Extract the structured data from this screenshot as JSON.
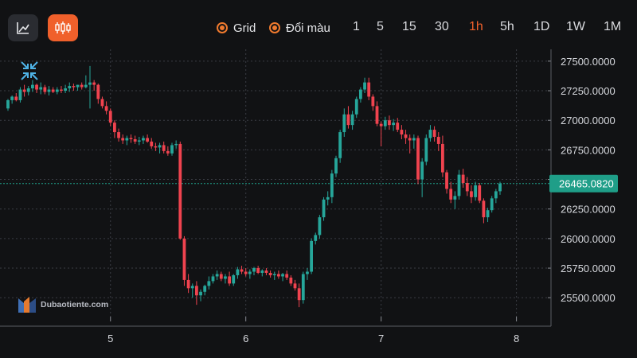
{
  "toolbar": {
    "line_chart_button": "line-chart-icon",
    "candle_chart_button": "candlestick-icon",
    "grid_label": "Grid",
    "color_label": "Đổi màu",
    "timeframes": [
      "1",
      "5",
      "15",
      "30",
      "1h",
      "5h",
      "1D",
      "1W",
      "1M"
    ],
    "active_timeframe": "1h",
    "accent_color": "#f0602b"
  },
  "watermark": {
    "text": "Dubaotiente.com"
  },
  "colors": {
    "up": "#26a69a",
    "down": "#f0434f",
    "price_tag": "#1f9e88"
  },
  "chart_data": {
    "type": "candlestick",
    "y_ticks": [
      "27500.0000",
      "27250.0000",
      "27000.0000",
      "26750.0000",
      "26500.0000",
      "26250.0000",
      "26000.0000",
      "25750.0000",
      "25500.0000"
    ],
    "y_tick_values": [
      27500,
      27250,
      27000,
      26750,
      26500,
      26250,
      26000,
      25750,
      25500
    ],
    "ylim": [
      25340,
      27600
    ],
    "x_ticks": [
      "5",
      "6",
      "7",
      "8"
    ],
    "x_tick_index": [
      25,
      58,
      91,
      124
    ],
    "current_price": 26465.082,
    "current_price_label": "26465.0820",
    "grid": true,
    "candles": [
      [
        27100,
        27180,
        27080,
        27170
      ],
      [
        27170,
        27210,
        27140,
        27200
      ],
      [
        27200,
        27230,
        27160,
        27170
      ],
      [
        27170,
        27280,
        27150,
        27260
      ],
      [
        27260,
        27300,
        27200,
        27240
      ],
      [
        27240,
        27290,
        27210,
        27270
      ],
      [
        27270,
        27340,
        27240,
        27300
      ],
      [
        27300,
        27310,
        27230,
        27260
      ],
      [
        27260,
        27320,
        27220,
        27280
      ],
      [
        27280,
        27300,
        27220,
        27240
      ],
      [
        27240,
        27290,
        27210,
        27260
      ],
      [
        27260,
        27280,
        27230,
        27240
      ],
      [
        27240,
        27280,
        27220,
        27260
      ],
      [
        27260,
        27290,
        27230,
        27250
      ],
      [
        27250,
        27300,
        27230,
        27270
      ],
      [
        27270,
        27320,
        27240,
        27290
      ],
      [
        27290,
        27310,
        27250,
        27280
      ],
      [
        27280,
        27300,
        27250,
        27300
      ],
      [
        27300,
        27320,
        27260,
        27280
      ],
      [
        27280,
        27380,
        27270,
        27300
      ],
      [
        27300,
        27460,
        27100,
        27320
      ],
      [
        27320,
        27340,
        27250,
        27300
      ],
      [
        27300,
        27310,
        27140,
        27180
      ],
      [
        27180,
        27200,
        27100,
        27120
      ],
      [
        27120,
        27160,
        27050,
        27080
      ],
      [
        27080,
        27100,
        26950,
        26980
      ],
      [
        26980,
        27000,
        26850,
        26900
      ],
      [
        26900,
        26930,
        26820,
        26850
      ],
      [
        26850,
        26880,
        26800,
        26830
      ],
      [
        26830,
        26870,
        26790,
        26850
      ],
      [
        26850,
        26880,
        26810,
        26840
      ],
      [
        26840,
        26870,
        26800,
        26820
      ],
      [
        26820,
        26860,
        26790,
        26830
      ],
      [
        26830,
        26870,
        26800,
        26850
      ],
      [
        26850,
        26880,
        26810,
        26820
      ],
      [
        26820,
        26850,
        26760,
        26780
      ],
      [
        26780,
        26810,
        26740,
        26770
      ],
      [
        26770,
        26810,
        26720,
        26790
      ],
      [
        26790,
        26820,
        26720,
        26740
      ],
      [
        26740,
        26780,
        26700,
        26720
      ],
      [
        26720,
        26810,
        26700,
        26790
      ],
      [
        26790,
        26830,
        26760,
        26800
      ],
      [
        26800,
        26820,
        25990,
        26000
      ],
      [
        26000,
        26020,
        25600,
        25650
      ],
      [
        25650,
        25700,
        25540,
        25580
      ],
      [
        25580,
        25620,
        25500,
        25600
      ],
      [
        25600,
        25640,
        25440,
        25520
      ],
      [
        25520,
        25570,
        25470,
        25550
      ],
      [
        25550,
        25610,
        25520,
        25600
      ],
      [
        25600,
        25680,
        25570,
        25640
      ],
      [
        25640,
        25700,
        25620,
        25680
      ],
      [
        25680,
        25730,
        25650,
        25700
      ],
      [
        25700,
        25720,
        25640,
        25660
      ],
      [
        25660,
        25700,
        25620,
        25680
      ],
      [
        25680,
        25720,
        25600,
        25620
      ],
      [
        25620,
        25700,
        25600,
        25690
      ],
      [
        25690,
        25760,
        25660,
        25740
      ],
      [
        25740,
        25770,
        25700,
        25720
      ],
      [
        25720,
        25750,
        25680,
        25700
      ],
      [
        25700,
        25740,
        25660,
        25720
      ],
      [
        25720,
        25760,
        25690,
        25750
      ],
      [
        25750,
        25770,
        25700,
        25710
      ],
      [
        25710,
        25740,
        25680,
        25730
      ],
      [
        25730,
        25750,
        25690,
        25710
      ],
      [
        25710,
        25730,
        25670,
        25690
      ],
      [
        25690,
        25720,
        25650,
        25700
      ],
      [
        25700,
        25730,
        25660,
        25680
      ],
      [
        25680,
        25710,
        25640,
        25700
      ],
      [
        25700,
        25730,
        25650,
        25670
      ],
      [
        25670,
        25690,
        25600,
        25620
      ],
      [
        25620,
        25650,
        25560,
        25580
      ],
      [
        25580,
        25620,
        25420,
        25480
      ],
      [
        25480,
        25720,
        25450,
        25700
      ],
      [
        25700,
        25750,
        25650,
        25720
      ],
      [
        25720,
        26000,
        25700,
        25980
      ],
      [
        25980,
        26050,
        25950,
        26030
      ],
      [
        26030,
        26200,
        26000,
        26180
      ],
      [
        26180,
        26350,
        26150,
        26330
      ],
      [
        26330,
        26400,
        26280,
        26350
      ],
      [
        26350,
        26580,
        26300,
        26550
      ],
      [
        26550,
        26700,
        26520,
        26680
      ],
      [
        26680,
        26920,
        26640,
        26900
      ],
      [
        26900,
        27100,
        26860,
        27050
      ],
      [
        27050,
        27120,
        26930,
        26960
      ],
      [
        26960,
        27080,
        26920,
        27050
      ],
      [
        27050,
        27200,
        27020,
        27180
      ],
      [
        27180,
        27280,
        27150,
        27260
      ],
      [
        27260,
        27360,
        27230,
        27320
      ],
      [
        27320,
        27360,
        27170,
        27200
      ],
      [
        27200,
        27220,
        27080,
        27120
      ],
      [
        27120,
        27160,
        26950,
        26970
      ],
      [
        26970,
        26990,
        26780,
        26950
      ],
      [
        26950,
        27030,
        26920,
        27000
      ],
      [
        27000,
        27040,
        26920,
        26960
      ],
      [
        26960,
        27010,
        26910,
        26980
      ],
      [
        26980,
        27020,
        26900,
        26920
      ],
      [
        26920,
        26960,
        26840,
        26880
      ],
      [
        26880,
        26920,
        26800,
        26850
      ],
      [
        26850,
        26880,
        26720,
        26830
      ],
      [
        26830,
        26880,
        26760,
        26850
      ],
      [
        26850,
        26870,
        26460,
        26500
      ],
      [
        26500,
        26680,
        26350,
        26650
      ],
      [
        26650,
        26880,
        26620,
        26850
      ],
      [
        26850,
        26960,
        26820,
        26920
      ],
      [
        26920,
        26950,
        26820,
        26860
      ],
      [
        26860,
        26900,
        26740,
        26800
      ],
      [
        26800,
        26870,
        26520,
        26560
      ],
      [
        26560,
        26580,
        26380,
        26420
      ],
      [
        26420,
        26480,
        26300,
        26330
      ],
      [
        26330,
        26400,
        26250,
        26360
      ],
      [
        26360,
        26580,
        26330,
        26540
      ],
      [
        26540,
        26590,
        26430,
        26470
      ],
      [
        26470,
        26520,
        26360,
        26400
      ],
      [
        26400,
        26450,
        26300,
        26350
      ],
      [
        26350,
        26480,
        26320,
        26450
      ],
      [
        26450,
        26470,
        26300,
        26320
      ],
      [
        26320,
        26340,
        26130,
        26180
      ],
      [
        26180,
        26260,
        26140,
        26240
      ],
      [
        26240,
        26360,
        26220,
        26340
      ],
      [
        26340,
        26420,
        26300,
        26400
      ],
      [
        26400,
        26480,
        26370,
        26465
      ]
    ]
  }
}
